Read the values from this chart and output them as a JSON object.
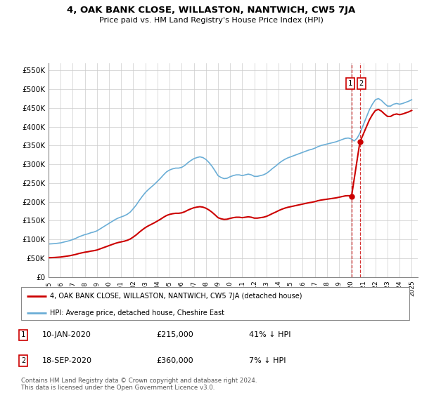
{
  "title": "4, OAK BANK CLOSE, WILLASTON, NANTWICH, CW5 7JA",
  "subtitle": "Price paid vs. HM Land Registry's House Price Index (HPI)",
  "legend_line1": "4, OAK BANK CLOSE, WILLASTON, NANTWICH, CW5 7JA (detached house)",
  "legend_line2": "HPI: Average price, detached house, Cheshire East",
  "annotation1_label": "1",
  "annotation1_date": "10-JAN-2020",
  "annotation1_price": "£215,000",
  "annotation1_pct": "41% ↓ HPI",
  "annotation2_label": "2",
  "annotation2_date": "18-SEP-2020",
  "annotation2_price": "£360,000",
  "annotation2_pct": "7% ↓ HPI",
  "footer": "Contains HM Land Registry data © Crown copyright and database right 2024.\nThis data is licensed under the Open Government Licence v3.0.",
  "hpi_color": "#6baed6",
  "price_color": "#cc0000",
  "dashed_line_color": "#cc0000",
  "ylim_min": 0,
  "ylim_max": 570000,
  "yticks": [
    0,
    50000,
    100000,
    150000,
    200000,
    250000,
    300000,
    350000,
    400000,
    450000,
    500000,
    550000
  ],
  "ytick_labels": [
    "£0",
    "£50K",
    "£100K",
    "£150K",
    "£200K",
    "£250K",
    "£300K",
    "£350K",
    "£400K",
    "£450K",
    "£500K",
    "£550K"
  ],
  "xmin": 1995.0,
  "xmax": 2025.5,
  "xticks": [
    1995,
    1996,
    1997,
    1998,
    1999,
    2000,
    2001,
    2002,
    2003,
    2004,
    2005,
    2006,
    2007,
    2008,
    2009,
    2010,
    2011,
    2012,
    2013,
    2014,
    2015,
    2016,
    2017,
    2018,
    2019,
    2020,
    2021,
    2022,
    2023,
    2024,
    2025
  ],
  "sale1_x": 2020.03,
  "sale1_y": 215000,
  "sale2_x": 2020.72,
  "sale2_y": 360000,
  "hpi_x": [
    1995.0,
    1995.25,
    1995.5,
    1995.75,
    1996.0,
    1996.25,
    1996.5,
    1996.75,
    1997.0,
    1997.25,
    1997.5,
    1997.75,
    1998.0,
    1998.25,
    1998.5,
    1998.75,
    1999.0,
    1999.25,
    1999.5,
    1999.75,
    2000.0,
    2000.25,
    2000.5,
    2000.75,
    2001.0,
    2001.25,
    2001.5,
    2001.75,
    2002.0,
    2002.25,
    2002.5,
    2002.75,
    2003.0,
    2003.25,
    2003.5,
    2003.75,
    2004.0,
    2004.25,
    2004.5,
    2004.75,
    2005.0,
    2005.25,
    2005.5,
    2005.75,
    2006.0,
    2006.25,
    2006.5,
    2006.75,
    2007.0,
    2007.25,
    2007.5,
    2007.75,
    2008.0,
    2008.25,
    2008.5,
    2008.75,
    2009.0,
    2009.25,
    2009.5,
    2009.75,
    2010.0,
    2010.25,
    2010.5,
    2010.75,
    2011.0,
    2011.25,
    2011.5,
    2011.75,
    2012.0,
    2012.25,
    2012.5,
    2012.75,
    2013.0,
    2013.25,
    2013.5,
    2013.75,
    2014.0,
    2014.25,
    2014.5,
    2014.75,
    2015.0,
    2015.25,
    2015.5,
    2015.75,
    2016.0,
    2016.25,
    2016.5,
    2016.75,
    2017.0,
    2017.25,
    2017.5,
    2017.75,
    2018.0,
    2018.25,
    2018.5,
    2018.75,
    2019.0,
    2019.25,
    2019.5,
    2019.75,
    2020.0,
    2020.25,
    2020.5,
    2020.75,
    2021.0,
    2021.25,
    2021.5,
    2021.75,
    2022.0,
    2022.25,
    2022.5,
    2022.75,
    2023.0,
    2023.25,
    2023.5,
    2023.75,
    2024.0,
    2024.25,
    2024.5,
    2024.75,
    2025.0
  ],
  "hpi_y": [
    88000,
    88500,
    89000,
    90000,
    91000,
    93000,
    95000,
    97000,
    100000,
    103000,
    107000,
    110000,
    113000,
    115000,
    118000,
    120000,
    123000,
    128000,
    133000,
    138000,
    143000,
    148000,
    153000,
    157000,
    160000,
    163000,
    167000,
    173000,
    182000,
    192000,
    204000,
    215000,
    225000,
    233000,
    240000,
    247000,
    255000,
    263000,
    272000,
    280000,
    285000,
    288000,
    290000,
    290000,
    292000,
    297000,
    304000,
    310000,
    315000,
    318000,
    320000,
    318000,
    313000,
    305000,
    295000,
    283000,
    270000,
    265000,
    262000,
    263000,
    267000,
    270000,
    272000,
    272000,
    270000,
    272000,
    274000,
    272000,
    268000,
    268000,
    270000,
    272000,
    276000,
    282000,
    289000,
    295000,
    302000,
    308000,
    313000,
    317000,
    320000,
    323000,
    326000,
    329000,
    332000,
    335000,
    338000,
    340000,
    343000,
    347000,
    350000,
    352000,
    354000,
    356000,
    358000,
    360000,
    363000,
    366000,
    369000,
    370000,
    368000,
    362000,
    370000,
    385000,
    405000,
    425000,
    445000,
    460000,
    472000,
    475000,
    470000,
    462000,
    455000,
    455000,
    460000,
    462000,
    460000,
    462000,
    465000,
    468000,
    472000
  ]
}
